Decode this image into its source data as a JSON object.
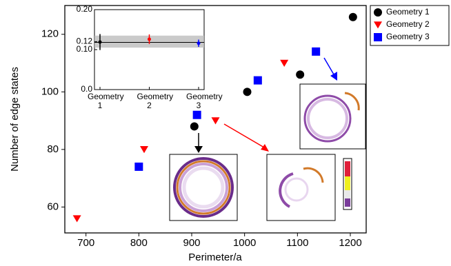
{
  "chart_data": [
    {
      "type": "scatter",
      "xlabel": "Perimeter/a",
      "ylabel": "Number of edge states",
      "xlim": [
        660,
        1230
      ],
      "ylim": [
        51,
        130
      ],
      "xticks": [
        700,
        800,
        900,
        1000,
        1100,
        1200
      ],
      "yticks": [
        60,
        80,
        100,
        120
      ],
      "legend": "outside-right",
      "series": [
        {
          "name": "Geometry 1",
          "color": "#000000",
          "marker": "circle",
          "x": [
            905,
            1005,
            1105,
            1205
          ],
          "values": [
            88,
            100,
            106,
            126
          ]
        },
        {
          "name": "Geometry 2",
          "color": "#ff0000",
          "marker": "triangle-down",
          "x": [
            683,
            810,
            945,
            1075
          ],
          "values": [
            56,
            80,
            90,
            110
          ]
        },
        {
          "name": "Geometry 3",
          "color": "#0000ff",
          "marker": "square",
          "x": [
            800,
            910,
            1025,
            1135
          ],
          "values": [
            74,
            92,
            104,
            114
          ]
        }
      ]
    },
    {
      "type": "errorbar",
      "categories": [
        "Geometry 1",
        "Geometry 2",
        "Geometry 3"
      ],
      "ylim": [
        0,
        0.2
      ],
      "yticks": [
        {
          "value": 0,
          "label": "0.0"
        },
        {
          "value": 0.1,
          "label": "0.10"
        },
        0.12,
        {
          "value": 0.2,
          "label": "0.20"
        }
      ],
      "band": [
        0.105,
        0.135
      ],
      "mean": 0.118,
      "colors": [
        "#000000",
        "#ff0000",
        "#0000ff"
      ],
      "values": [
        0.119,
        0.126,
        0.116
      ],
      "errors": [
        0.02,
        0.012,
        0.009
      ]
    }
  ]
}
